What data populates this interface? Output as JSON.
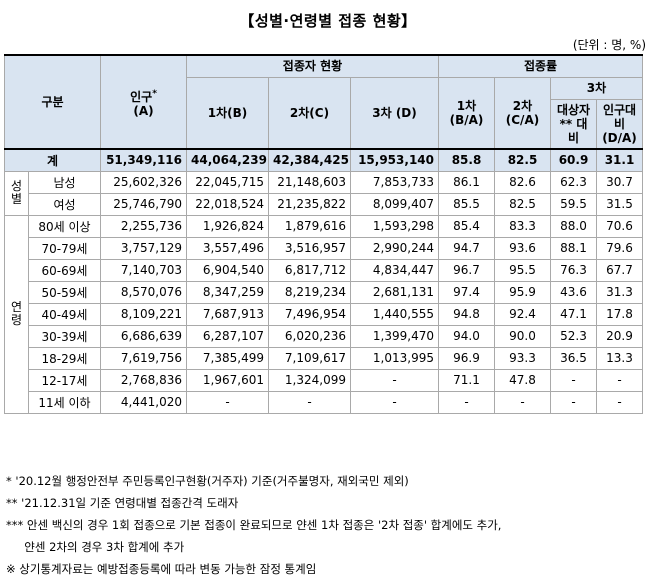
{
  "title": "【성별·연령별 접종 현황】",
  "unit": "(단위 : 명, %)",
  "header": {
    "category": "구분",
    "population": "인구",
    "population_mark": "*",
    "population_unit": "(A)",
    "vaccinated_group": "접종자 현황",
    "dose1": "1차(B)",
    "dose2": "2차(C)",
    "dose3": "3차 (D)",
    "rate_group": "접종률",
    "rate1_a": "1차",
    "rate1_b": "(B/A)",
    "rate2_a": "2차",
    "rate2_b": "(C/A)",
    "rate3_group": "3차",
    "target_a": "대상자",
    "target_b": "** 대비",
    "pop_ratio_a": "인구대",
    "pop_ratio_b": "비",
    "pop_ratio_c": "(D/A)"
  },
  "total": {
    "label": "계",
    "population": "51,349,116",
    "dose1": "44,064,239",
    "dose2": "42,384,425",
    "dose3": "15,953,140",
    "rate1": "85.8",
    "rate2": "82.5",
    "target": "60.9",
    "ratio": "31.1"
  },
  "groups": {
    "sex": [
      "성",
      "별"
    ],
    "age": [
      "연",
      "령"
    ]
  },
  "rows": [
    {
      "label": "남성",
      "population": "25,602,326",
      "dose1": "22,045,715",
      "dose2": "21,148,603",
      "dose3": "7,853,733",
      "rate1": "86.1",
      "rate2": "82.6",
      "target": "62.3",
      "ratio": "30.7"
    },
    {
      "label": "여성",
      "population": "25,746,790",
      "dose1": "22,018,524",
      "dose2": "21,235,822",
      "dose3": "8,099,407",
      "rate1": "85.5",
      "rate2": "82.5",
      "target": "59.5",
      "ratio": "31.5"
    },
    {
      "label": "80세 이상",
      "population": "2,255,736",
      "dose1": "1,926,824",
      "dose2": "1,879,616",
      "dose3": "1,593,298",
      "rate1": "85.4",
      "rate2": "83.3",
      "target": "88.0",
      "ratio": "70.6"
    },
    {
      "label": "70-79세",
      "population": "3,757,129",
      "dose1": "3,557,496",
      "dose2": "3,516,957",
      "dose3": "2,990,244",
      "rate1": "94.7",
      "rate2": "93.6",
      "target": "88.1",
      "ratio": "79.6"
    },
    {
      "label": "60-69세",
      "population": "7,140,703",
      "dose1": "6,904,540",
      "dose2": "6,817,712",
      "dose3": "4,834,447",
      "rate1": "96.7",
      "rate2": "95.5",
      "target": "76.3",
      "ratio": "67.7"
    },
    {
      "label": "50-59세",
      "population": "8,570,076",
      "dose1": "8,347,259",
      "dose2": "8,219,234",
      "dose3": "2,681,131",
      "rate1": "97.4",
      "rate2": "95.9",
      "target": "43.6",
      "ratio": "31.3"
    },
    {
      "label": "40-49세",
      "population": "8,109,221",
      "dose1": "7,687,913",
      "dose2": "7,496,954",
      "dose3": "1,440,555",
      "rate1": "94.8",
      "rate2": "92.4",
      "target": "47.1",
      "ratio": "17.8"
    },
    {
      "label": "30-39세",
      "population": "6,686,639",
      "dose1": "6,287,107",
      "dose2": "6,020,236",
      "dose3": "1,399,470",
      "rate1": "94.0",
      "rate2": "90.0",
      "target": "52.3",
      "ratio": "20.9"
    },
    {
      "label": "18-29세",
      "population": "7,619,756",
      "dose1": "7,385,499",
      "dose2": "7,109,617",
      "dose3": "1,013,995",
      "rate1": "96.9",
      "rate2": "93.3",
      "target": "36.5",
      "ratio": "13.3"
    },
    {
      "label": "12-17세",
      "population": "2,768,836",
      "dose1": "1,967,601",
      "dose2": "1,324,099",
      "dose3": "-",
      "rate1": "71.1",
      "rate2": "47.8",
      "target": "-",
      "ratio": "-"
    },
    {
      "label": "11세 이하",
      "population": "4,441,020",
      "dose1": "-",
      "dose2": "-",
      "dose3": "-",
      "rate1": "-",
      "rate2": "-",
      "target": "-",
      "ratio": "-"
    }
  ],
  "notes": [
    "* '20.12월 행정안전부 주민등록인구현황(거주자) 기준(거주불명자, 재외국민 제외)",
    "** '21.12.31일 기준 연령대별 접종간격 도래자",
    "*** 안센 백신의 경우 1회 접종으로 기본 접종이 완료되므로 얀센 1차 접종은 '2차 접종' 합계에도 추가,",
    "     얀센 2차의 경우 3차 합계에 추가",
    "※ 상기통계자료는 예방접종등록에 따라 변동 가능한 잠정 통계임"
  ]
}
